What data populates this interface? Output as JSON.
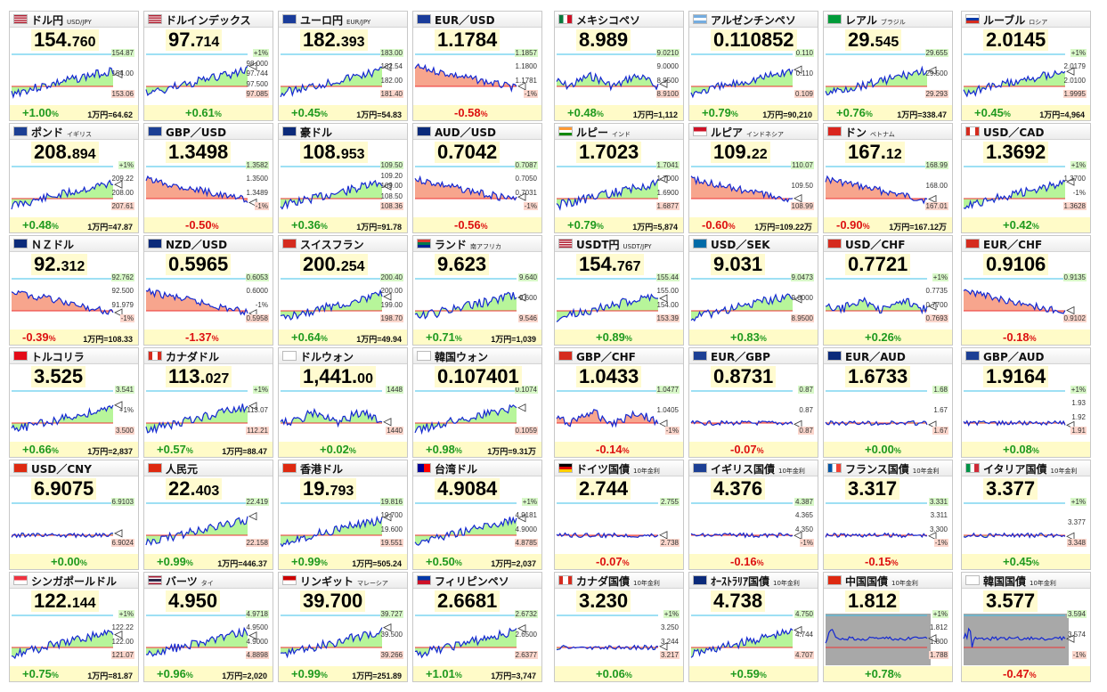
{
  "colors": {
    "up": "#1f9a1f",
    "down": "#dd1111",
    "flat": "#1f9a1f",
    "line": "#1428d2",
    "upFill": "#b7f59a",
    "downFill": "#f7a58d"
  },
  "panels": [
    {
      "name": "ドル円",
      "sub": "USD/JPY",
      "flag": "flag-us-icon",
      "pa": "154.",
      "pb": "760",
      "chg": "+1.00",
      "dir": "up",
      "manen": "1万円=64.62",
      "ticks": [
        "154.87",
        "154.00",
        "153.06"
      ],
      "trend": "up"
    },
    {
      "name": "ドルインデックス",
      "sub": "",
      "flag": "flag-us-icon",
      "pa": "97.",
      "pb": "714",
      "chg": "+0.61",
      "dir": "up",
      "manen": "",
      "ticks": [
        "+1%",
        "98.000",
        "97.744",
        "97.500",
        "97.085"
      ],
      "trend": "up"
    },
    {
      "name": "ユーロ円",
      "sub": "EUR/JPY",
      "flag": "flag-eu-icon",
      "pa": "182.",
      "pb": "393",
      "chg": "+0.45",
      "dir": "up",
      "manen": "1万円=54.83",
      "ticks": [
        "183.00",
        "182.54",
        "182.00",
        "181.40"
      ],
      "trend": "up"
    },
    {
      "name": "EUR／USD",
      "sub": "",
      "flag": "flag-eu-icon",
      "pa": "1.1784",
      "pb": "",
      "chg": "-0.58",
      "dir": "down",
      "manen": "",
      "ticks": [
        "1.1857",
        "1.1800",
        "1.1781",
        "-1%"
      ],
      "trend": "down"
    },
    {
      "name": "メキシコペソ",
      "sub": "",
      "flag": "flag-mx-icon",
      "pa": "8.989",
      "pb": "",
      "chg": "+0.48",
      "dir": "up",
      "manen": "1万円=1,112",
      "ticks": [
        "9.0210",
        "9.0000",
        "8.9500",
        "8.9100"
      ],
      "trend": "wave"
    },
    {
      "name": "アルゼンチンペソ",
      "sub": "",
      "flag": "flag-ar-icon",
      "pa": "0.110852",
      "pb": "",
      "chg": "+0.79",
      "dir": "up",
      "manen": "1万円=90,210",
      "ticks": [
        "0.110",
        "0.110",
        "0.109"
      ],
      "trend": "up"
    },
    {
      "name": "レアル",
      "sub": "ブラジル",
      "flag": "flag-br-icon",
      "pa": "29.",
      "pb": "545",
      "chg": "+0.76",
      "dir": "up",
      "manen": "1万円=338.47",
      "ticks": [
        "29.655",
        "29.500",
        "29.293"
      ],
      "trend": "up"
    },
    {
      "name": "ルーブル",
      "sub": "ロシア",
      "flag": "flag-ru-icon",
      "pa": "2.0145",
      "pb": "",
      "chg": "+0.45",
      "dir": "up",
      "manen": "1万円=4,964",
      "ticks": [
        "+1%",
        "2.0179",
        "2.0100",
        "1.9995"
      ],
      "trend": "up"
    },
    {
      "name": "ポンド",
      "sub": "イギリス",
      "flag": "flag-gb-icon",
      "pa": "208.",
      "pb": "894",
      "chg": "+0.48",
      "dir": "up",
      "manen": "1万円=47.87",
      "ticks": [
        "+1%",
        "209.22",
        "208.00",
        "207.61"
      ],
      "trend": "up"
    },
    {
      "name": "GBP／USD",
      "sub": "",
      "flag": "flag-gb-icon",
      "pa": "1.3498",
      "pb": "",
      "chg": "-0.50",
      "dir": "down",
      "manen": "",
      "ticks": [
        "1.3582",
        "1.3500",
        "1.3489",
        "-1%"
      ],
      "trend": "down"
    },
    {
      "name": "豪ドル",
      "sub": "",
      "flag": "flag-au-icon",
      "pa": "108.",
      "pb": "953",
      "chg": "+0.36",
      "dir": "up",
      "manen": "1万円=91.78",
      "ticks": [
        "109.50",
        "109.20",
        "109.00",
        "108.50",
        "108.36"
      ],
      "trend": "up"
    },
    {
      "name": "AUD／USD",
      "sub": "",
      "flag": "flag-au-icon",
      "pa": "0.7042",
      "pb": "",
      "chg": "-0.56",
      "dir": "down",
      "manen": "",
      "ticks": [
        "0.7087",
        "0.7050",
        "0.7031",
        "-1%"
      ],
      "trend": "down"
    },
    {
      "name": "ルピー",
      "sub": "インド",
      "flag": "flag-in-icon",
      "pa": "1.7023",
      "pb": "",
      "chg": "+0.79",
      "dir": "up",
      "manen": "1万円=5,874",
      "ticks": [
        "1.7041",
        "1.7000",
        "1.6900",
        "1.6877"
      ],
      "trend": "up"
    },
    {
      "name": "ルピア",
      "sub": "インドネシア",
      "flag": "flag-id-icon",
      "pa": "109.",
      "pb": "22",
      "chg": "-0.60",
      "dir": "down",
      "manen": "1万円=109.22万",
      "ticks": [
        "110.07",
        "109.50",
        "108.99"
      ],
      "trend": "down"
    },
    {
      "name": "ドン",
      "sub": "ベトナム",
      "flag": "flag-vn-icon",
      "pa": "167.",
      "pb": "12",
      "chg": "-0.90",
      "dir": "down",
      "manen": "1万円=167.12万",
      "ticks": [
        "168.99",
        "168.00",
        "167.01"
      ],
      "trend": "down"
    },
    {
      "name": "USD／CAD",
      "sub": "",
      "flag": "flag-ca-icon",
      "pa": "1.3692",
      "pb": "",
      "chg": "+0.42",
      "dir": "up",
      "manen": "",
      "ticks": [
        "+1%",
        "1.3700",
        "-1%",
        "1.3628"
      ],
      "trend": "up"
    },
    {
      "name": "ＮＺドル",
      "sub": "",
      "flag": "flag-nz-icon",
      "pa": "92.",
      "pb": "312",
      "chg": "-0.39",
      "dir": "down",
      "manen": "1万円=108.33",
      "ticks": [
        "92.762",
        "92.500",
        "91.979",
        "-1%"
      ],
      "trend": "down"
    },
    {
      "name": "NZD／USD",
      "sub": "",
      "flag": "flag-nz-icon",
      "pa": "0.5965",
      "pb": "",
      "chg": "-1.37",
      "dir": "down",
      "manen": "",
      "ticks": [
        "0.6053",
        "0.6000",
        "-1%",
        "0.5958"
      ],
      "trend": "down"
    },
    {
      "name": "スイスフラン",
      "sub": "",
      "flag": "flag-ch-icon",
      "pa": "200.",
      "pb": "254",
      "chg": "+0.64",
      "dir": "up",
      "manen": "1万円=49.94",
      "ticks": [
        "200.40",
        "200.00",
        "199.00",
        "198.70"
      ],
      "trend": "up"
    },
    {
      "name": "ランド",
      "sub": "南アフリカ",
      "flag": "flag-za-icon",
      "pa": "9.623",
      "pb": "",
      "chg": "+0.71",
      "dir": "up",
      "manen": "1万円=1,039",
      "ticks": [
        "9.640",
        "9.600",
        "9.546"
      ],
      "trend": "up"
    },
    {
      "name": "USDT円",
      "sub": "USDT/JPY",
      "flag": "flag-us-icon",
      "pa": "154.",
      "pb": "767",
      "chg": "+0.89",
      "dir": "up",
      "manen": "",
      "ticks": [
        "155.44",
        "155.00",
        "154.00",
        "153.39"
      ],
      "trend": "up"
    },
    {
      "name": "USD／SEK",
      "sub": "",
      "flag": "flag-se-icon",
      "pa": "9.031",
      "pb": "",
      "chg": "+0.83",
      "dir": "up",
      "manen": "",
      "ticks": [
        "9.0473",
        "9.0000",
        "8.9500"
      ],
      "trend": "up"
    },
    {
      "name": "USD／CHF",
      "sub": "",
      "flag": "flag-ch-icon",
      "pa": "0.7721",
      "pb": "",
      "chg": "+0.26",
      "dir": "up",
      "manen": "",
      "ticks": [
        "+1%",
        "0.7735",
        "0.7700",
        "0.7693"
      ],
      "trend": "wave"
    },
    {
      "name": "EUR／CHF",
      "sub": "",
      "flag": "flag-ch-icon",
      "pa": "0.9106",
      "pb": "",
      "chg": "-0.18",
      "dir": "down",
      "manen": "",
      "ticks": [
        "0.9135",
        "0.9102"
      ],
      "trend": "down"
    },
    {
      "name": "トルコリラ",
      "sub": "",
      "flag": "flag-tr-icon",
      "pa": "3.525",
      "pb": "",
      "chg": "+0.66",
      "dir": "up",
      "manen": "1万円=2,837",
      "ticks": [
        "3.541",
        "+1%",
        "3.500"
      ],
      "trend": "up"
    },
    {
      "name": "カナダドル",
      "sub": "",
      "flag": "flag-ca-icon",
      "pa": "113.",
      "pb": "027",
      "chg": "+0.57",
      "dir": "up",
      "manen": "1万円=88.47",
      "ticks": [
        "+1%",
        "113.07",
        "112.21"
      ],
      "trend": "up"
    },
    {
      "name": "ドルウォン",
      "sub": "",
      "flag": "flag-kr-icon",
      "pa": "1,441.",
      "pb": "00",
      "chg": "+0.02",
      "dir": "up",
      "manen": "",
      "ticks": [
        "1448",
        "1440"
      ],
      "trend": "wave"
    },
    {
      "name": "韓国ウォン",
      "sub": "",
      "flag": "flag-kr-icon",
      "pa": "0.107401",
      "pb": "",
      "chg": "+0.98",
      "dir": "up",
      "manen": "1万円=9.31万",
      "ticks": [
        "0.1074",
        "0.1059"
      ],
      "trend": "up"
    },
    {
      "name": "GBP／CHF",
      "sub": "",
      "flag": "flag-ch-icon",
      "pa": "1.0433",
      "pb": "",
      "chg": "-0.14",
      "dir": "down",
      "manen": "",
      "ticks": [
        "1.0477",
        "1.0405",
        "-1%"
      ],
      "trend": "wave"
    },
    {
      "name": "EUR／GBP",
      "sub": "",
      "flag": "flag-gb-icon",
      "pa": "0.8731",
      "pb": "",
      "chg": "-0.07",
      "dir": "down",
      "manen": "",
      "ticks": [
        "0.87",
        "0.87",
        "0.87"
      ],
      "trend": "flat"
    },
    {
      "name": "EUR／AUD",
      "sub": "",
      "flag": "flag-au-icon",
      "pa": "1.6733",
      "pb": "",
      "chg": "+0.00",
      "dir": "flat",
      "manen": "",
      "ticks": [
        "1.68",
        "1.67",
        "1.67"
      ],
      "trend": "flat"
    },
    {
      "name": "GBP／AUD",
      "sub": "",
      "flag": "flag-gb-icon",
      "pa": "1.9164",
      "pb": "",
      "chg": "+0.08",
      "dir": "up",
      "manen": "",
      "ticks": [
        "+1%",
        "1.93",
        "1.92",
        "1.91"
      ],
      "trend": "flat"
    },
    {
      "name": "USD／CNY",
      "sub": "",
      "flag": "flag-cn-icon",
      "pa": "6.9075",
      "pb": "",
      "chg": "+0.00",
      "dir": "flat",
      "manen": "",
      "ticks": [
        "6.9103",
        "6.9024"
      ],
      "trend": "flat"
    },
    {
      "name": "人民元",
      "sub": "",
      "flag": "flag-cn-icon",
      "pa": "22.",
      "pb": "403",
      "chg": "+0.99",
      "dir": "up",
      "manen": "1万円=446.37",
      "ticks": [
        "22.419",
        "22.158"
      ],
      "trend": "up"
    },
    {
      "name": "香港ドル",
      "sub": "",
      "flag": "flag-hk-icon",
      "pa": "19.",
      "pb": "793",
      "chg": "+0.99",
      "dir": "up",
      "manen": "1万円=505.24",
      "ticks": [
        "19.816",
        "19.700",
        "19.600",
        "19.551"
      ],
      "trend": "up"
    },
    {
      "name": "台湾ドル",
      "sub": "",
      "flag": "flag-tw-icon",
      "pa": "4.9084",
      "pb": "",
      "chg": "+0.50",
      "dir": "up",
      "manen": "1万円=2,037",
      "ticks": [
        "+1%",
        "4.9181",
        "4.9000",
        "4.8785"
      ],
      "trend": "up"
    },
    {
      "name": "ドイツ国債",
      "sub": "10年金利",
      "flag": "flag-de-icon",
      "pa": "2.744",
      "pb": "",
      "chg": "-0.07",
      "dir": "down",
      "manen": "",
      "ticks": [
        "2.755",
        "2.738"
      ],
      "trend": "flat"
    },
    {
      "name": "イギリス国債",
      "sub": "10年金利",
      "flag": "flag-gb-icon",
      "pa": "4.376",
      "pb": "",
      "chg": "-0.16",
      "dir": "down",
      "manen": "",
      "ticks": [
        "4.387",
        "4.365",
        "4.350",
        "-1%"
      ],
      "trend": "flat"
    },
    {
      "name": "フランス国債",
      "sub": "10年金利",
      "flag": "flag-fr-icon",
      "pa": "3.317",
      "pb": "",
      "chg": "-0.15",
      "dir": "down",
      "manen": "",
      "ticks": [
        "3.331",
        "3.311",
        "3.300",
        "-1%"
      ],
      "trend": "flat"
    },
    {
      "name": "イタリア国債",
      "sub": "10年金利",
      "flag": "flag-it-icon",
      "pa": "3.377",
      "pb": "",
      "chg": "+0.45",
      "dir": "up",
      "manen": "",
      "ticks": [
        "+1%",
        "3.377",
        "3.348"
      ],
      "trend": "flat"
    },
    {
      "name": "シンガポールドル",
      "sub": "",
      "flag": "flag-sg-icon",
      "pa": "122.",
      "pb": "144",
      "chg": "+0.75",
      "dir": "up",
      "manen": "1万円=81.87",
      "ticks": [
        "+1%",
        "122.22",
        "122.00",
        "121.07"
      ],
      "trend": "up"
    },
    {
      "name": "バーツ",
      "sub": "タイ",
      "flag": "flag-th-icon",
      "pa": "4.950",
      "pb": "",
      "chg": "+0.96",
      "dir": "up",
      "manen": "1万円=2,020",
      "ticks": [
        "4.9718",
        "4.9500",
        "4.9000",
        "4.8898"
      ],
      "trend": "up"
    },
    {
      "name": "リンギット",
      "sub": "マレーシア",
      "flag": "flag-my-icon",
      "pa": "39.700",
      "pb": "",
      "chg": "+0.99",
      "dir": "up",
      "manen": "1万円=251.89",
      "ticks": [
        "39.727",
        "39.500",
        "39.266"
      ],
      "trend": "up"
    },
    {
      "name": "フィリピンペソ",
      "sub": "",
      "flag": "flag-ph-icon",
      "pa": "2.6681",
      "pb": "",
      "chg": "+1.01",
      "dir": "up",
      "manen": "1万円=3,747",
      "ticks": [
        "2.6732",
        "2.6500",
        "2.6377"
      ],
      "trend": "up"
    },
    {
      "name": "カナダ国債",
      "sub": "10年金利",
      "flag": "flag-ca-icon",
      "pa": "3.230",
      "pb": "",
      "chg": "+0.06",
      "dir": "up",
      "manen": "",
      "ticks": [
        "+1%",
        "3.250",
        "3.244",
        "3.217"
      ],
      "trend": "flat"
    },
    {
      "name": "ｵｰｽﾄﾗﾘｱ国債",
      "sub": "10年金利",
      "flag": "flag-au-icon",
      "pa": "4.738",
      "pb": "",
      "chg": "+0.59",
      "dir": "up",
      "manen": "",
      "ticks": [
        "4.750",
        "4.744",
        "4.707"
      ],
      "trend": "up"
    },
    {
      "name": "中国国債",
      "sub": "10年金利",
      "flag": "flag-cn-icon",
      "pa": "1.812",
      "pb": "",
      "chg": "+0.78",
      "dir": "up",
      "manen": "",
      "ticks": [
        "+1%",
        "1.812",
        "1.800",
        "1.788"
      ],
      "trend": "gray"
    },
    {
      "name": "韓国国債",
      "sub": "10年金利",
      "flag": "flag-kr-icon",
      "pa": "3.577",
      "pb": "",
      "chg": "-0.47",
      "dir": "down",
      "manen": "",
      "ticks": [
        "3.594",
        "3.574",
        "-1%"
      ],
      "trend": "gray"
    }
  ]
}
